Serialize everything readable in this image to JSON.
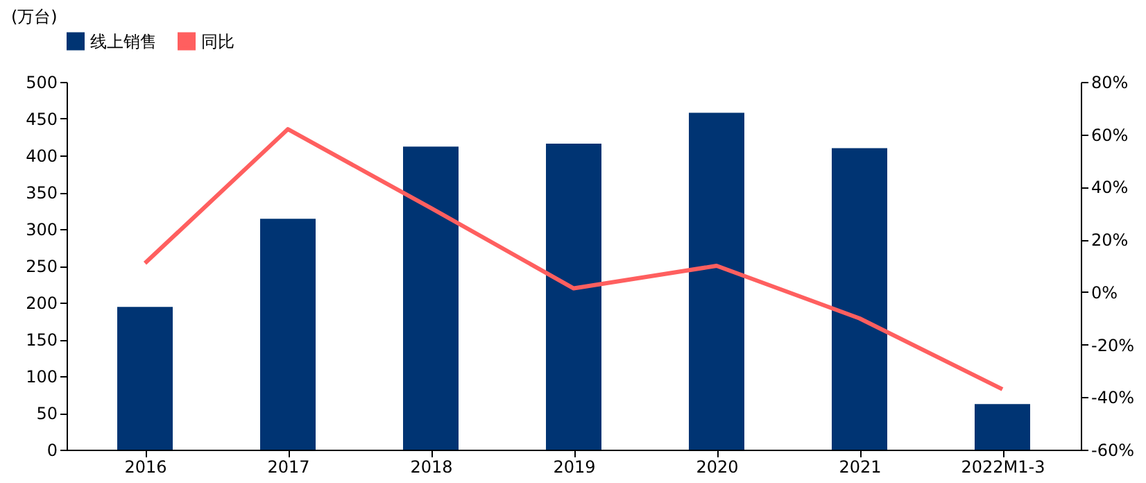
{
  "chart_data": {
    "type": "bar",
    "ylabel": "(万台)",
    "categories": [
      "2016",
      "2017",
      "2018",
      "2019",
      "2020",
      "2021",
      "2022M1-3"
    ],
    "series": [
      {
        "name": "线上销售",
        "color": "#003473",
        "values": [
          194,
          314,
          412,
          416,
          458,
          410,
          62
        ]
      },
      {
        "name": "同比",
        "type": "line",
        "axis": "y2",
        "color": "#ff5f5f",
        "values": [
          11,
          62,
          32,
          1.4,
          10,
          -10,
          -37
        ]
      }
    ],
    "ylim": [
      0,
      500
    ],
    "yticks": [
      0,
      50,
      100,
      150,
      200,
      250,
      300,
      350,
      400,
      450,
      500
    ],
    "y2lim": [
      -60,
      80
    ],
    "y2ticks": [
      {
        "value": -60,
        "label": "-60%"
      },
      {
        "value": -40,
        "label": "-40%"
      },
      {
        "value": -20,
        "label": "-20%"
      },
      {
        "value": 0,
        "label": "0%"
      },
      {
        "value": 20,
        "label": "20%"
      },
      {
        "value": 40,
        "label": "40%"
      },
      {
        "value": 60,
        "label": "60%"
      },
      {
        "value": 80,
        "label": "80%"
      }
    ],
    "legend": "top",
    "grid": false,
    "marker": "none",
    "line_style": "solid"
  }
}
